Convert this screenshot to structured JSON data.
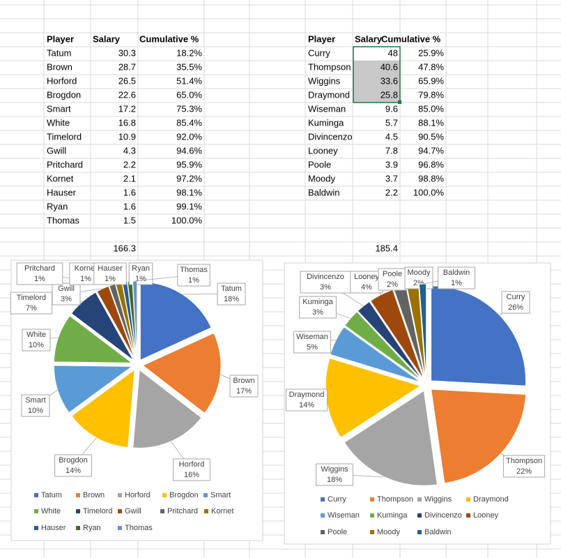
{
  "tables": [
    {
      "columns": [
        "Player",
        "Salary",
        "Cumulative %"
      ],
      "rows": [
        [
          "Tatum",
          "30.3",
          "18.2%"
        ],
        [
          "Brown",
          "28.7",
          "35.5%"
        ],
        [
          "Horford",
          "26.5",
          "51.4%"
        ],
        [
          "Brogdon",
          "22.6",
          "65.0%"
        ],
        [
          "Smart",
          "17.2",
          "75.3%"
        ],
        [
          "White",
          "16.8",
          "85.4%"
        ],
        [
          "Timelord",
          "10.9",
          "92.0%"
        ],
        [
          "Gwill",
          "4.3",
          "94.6%"
        ],
        [
          "Pritchard",
          "2.2",
          "95.9%"
        ],
        [
          "Kornet",
          "2.1",
          "97.2%"
        ],
        [
          "Hauser",
          "1.6",
          "98.1%"
        ],
        [
          "Ryan",
          "1.6",
          "99.1%"
        ],
        [
          "Thomas",
          "1.5",
          "100.0%"
        ]
      ],
      "total": "166.3"
    },
    {
      "columns": [
        "Player",
        "Salary",
        "Cumulative %"
      ],
      "rows": [
        [
          "Curry",
          "48",
          "25.9%"
        ],
        [
          "Thompson",
          "40.6",
          "47.8%"
        ],
        [
          "Wiggins",
          "33.6",
          "65.9%"
        ],
        [
          "Draymond",
          "25.8",
          "79.8%"
        ],
        [
          "Wiseman",
          "9.6",
          "85.0%"
        ],
        [
          "Kuminga",
          "5.7",
          "88.1%"
        ],
        [
          "Divincenzo",
          "4.5",
          "90.5%"
        ],
        [
          "Looney",
          "7.8",
          "94.7%"
        ],
        [
          "Poole",
          "3.9",
          "96.8%"
        ],
        [
          "Moody",
          "3.7",
          "98.8%"
        ],
        [
          "Baldwin",
          "2.2",
          "100.0%"
        ]
      ],
      "total": "185.4"
    }
  ],
  "chart_data": [
    {
      "type": "pie",
      "legend": "bottom",
      "categories": [
        "Tatum",
        "Brown",
        "Horford",
        "Brogdon",
        "Smart",
        "White",
        "Timelord",
        "Gwill",
        "Pritchard",
        "Kornet",
        "Hauser",
        "Ryan",
        "Thomas"
      ],
      "values": [
        18.2,
        17.3,
        15.9,
        13.6,
        10.3,
        10.1,
        6.6,
        2.6,
        1.3,
        1.3,
        1.0,
        1.0,
        0.9
      ],
      "value_labels": [
        "18%",
        "17%",
        "16%",
        "14%",
        "10%",
        "10%",
        "7%",
        "3%",
        "1%",
        "1%",
        "1%",
        "1%",
        "1%"
      ],
      "colors": [
        "#4472c4",
        "#ed7d31",
        "#a5a5a5",
        "#ffc000",
        "#5b9bd5",
        "#70ad47",
        "#264478",
        "#9e480e",
        "#636363",
        "#997300",
        "#255e91",
        "#43682b",
        "#698ed0"
      ]
    },
    {
      "type": "pie",
      "legend": "bottom",
      "categories": [
        "Curry",
        "Thompson",
        "Wiggins",
        "Draymond",
        "Wiseman",
        "Kuminga",
        "Divincenzo",
        "Looney",
        "Poole",
        "Moody",
        "Baldwin"
      ],
      "values": [
        25.9,
        21.9,
        18.1,
        13.9,
        5.2,
        3.1,
        2.5,
        4.2,
        2.1,
        2.0,
        1.2
      ],
      "value_labels": [
        "26%",
        "22%",
        "18%",
        "14%",
        "5%",
        "3%",
        "3%",
        "4%",
        "2%",
        "2%",
        "1%"
      ],
      "colors": [
        "#4472c4",
        "#ed7d31",
        "#a5a5a5",
        "#ffc000",
        "#5b9bd5",
        "#70ad47",
        "#264478",
        "#9e480e",
        "#636363",
        "#997300",
        "#255e91"
      ]
    }
  ]
}
